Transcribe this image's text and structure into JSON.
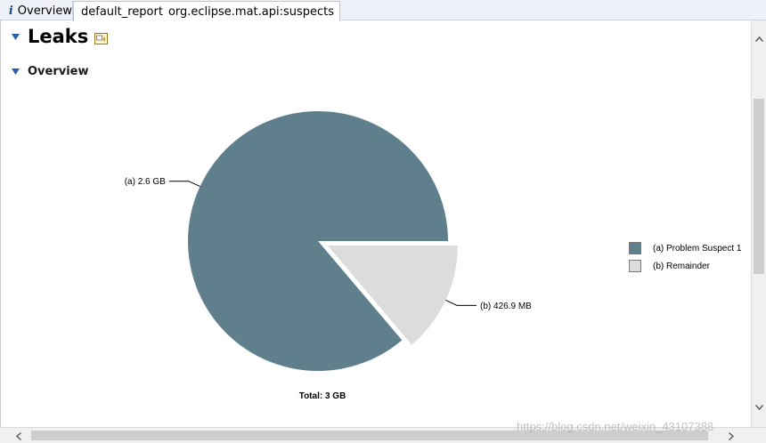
{
  "tabs": [
    {
      "label": "Overview",
      "icon": "info-icon",
      "active": false
    },
    {
      "label": "default_report",
      "sublabel": "org.eclipse.mat.api:suspects",
      "icon": "report-icon",
      "active": true
    }
  ],
  "page": {
    "title": "Leaks",
    "section_title": "Overview"
  },
  "chart_data": {
    "type": "pie",
    "slices": [
      {
        "label": "(a)",
        "value_text": "2.6 GB",
        "value": 2.6,
        "unit": "GB",
        "color": "#5f7f8d"
      },
      {
        "label": "(b)",
        "value_text": "426.9 MB",
        "value": 0.4169,
        "unit": "GB",
        "color": "#dcdcdc",
        "exploded": true
      }
    ],
    "total": "Total: 3 GB",
    "legend": [
      {
        "text": "(a)  Problem Suspect 1",
        "color": "#5f7f8d"
      },
      {
        "text": "(b)  Remainder",
        "color": "#dcdcdc"
      }
    ],
    "legend_position": "right"
  },
  "watermark": "https://blog.csdn.net/weixin_43107388",
  "colors": {
    "tab_bar": "#eef2f8",
    "slice_a": "#5f7f8d",
    "slice_b": "#dcdcdc",
    "scroll_thumb": "#cdcdcd"
  }
}
